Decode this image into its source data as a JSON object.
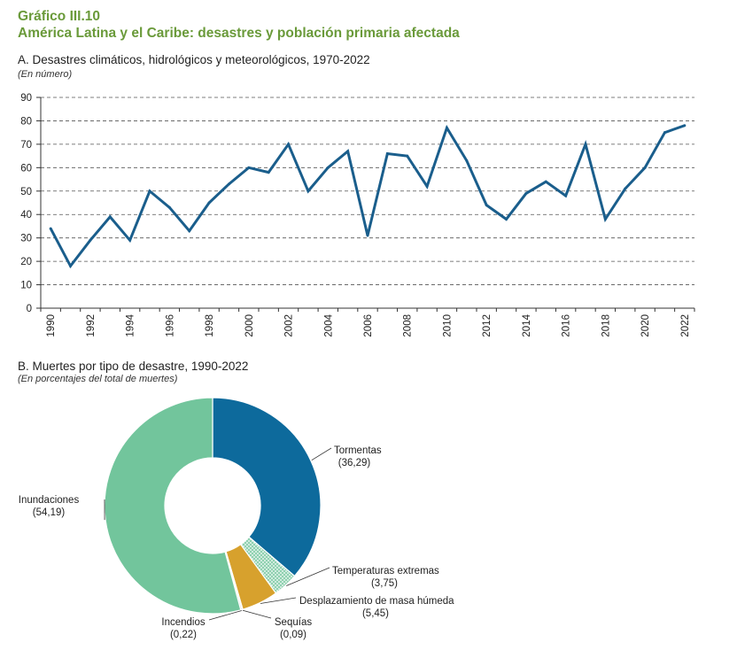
{
  "figure": {
    "number": "Gráfico III.10",
    "title": "América Latina y el Caribe: desastres y población primaria afectada"
  },
  "chart_data": [
    {
      "type": "line",
      "title": "A. Desastres climáticos, hidrológicos y meteorológicos, 1970-2022",
      "subtitle": "(En número)",
      "x": [
        1990,
        1991,
        1992,
        1993,
        1994,
        1995,
        1996,
        1997,
        1998,
        1999,
        2000,
        2001,
        2002,
        2003,
        2004,
        2005,
        2006,
        2007,
        2008,
        2009,
        2010,
        2011,
        2012,
        2013,
        2014,
        2015,
        2016,
        2017,
        2018,
        2019,
        2020,
        2021,
        2022
      ],
      "x_tick_labels": [
        "1990",
        "1992",
        "1994",
        "1996",
        "1998",
        "2000",
        "2002",
        "2004",
        "2006",
        "2008",
        "2010",
        "2012",
        "2014",
        "2016",
        "2018",
        "2020",
        "2022"
      ],
      "series": [
        {
          "values": [
            34,
            18,
            29,
            39,
            29,
            50,
            43,
            33,
            45,
            53,
            60,
            58,
            70,
            50,
            60,
            67,
            31,
            66,
            65,
            52,
            77,
            63,
            44,
            38,
            49,
            54,
            48,
            70,
            38,
            51,
            60,
            75,
            78
          ]
        }
      ],
      "ylim": [
        0,
        90
      ],
      "y_ticks": [
        0,
        10,
        20,
        30,
        40,
        50,
        60,
        70,
        80,
        90
      ],
      "grid": true,
      "color": "#1a5e8c"
    },
    {
      "type": "pie",
      "title": "B. Muertes por tipo de desastre, 1990-2022",
      "subtitle": "(En porcentajes del total de muertes)",
      "donut": true,
      "slices": [
        {
          "label": "Tormentas",
          "value": 36.29,
          "value_label": "(36,29)",
          "color": "#0d6a9c"
        },
        {
          "label": "Temperaturas extremas",
          "value": 3.75,
          "value_label": "(3,75)",
          "color": "#8fd1b0",
          "pattern": "dotted"
        },
        {
          "label": "Desplazamiento de masa húmeda",
          "value": 5.45,
          "value_label": "(5,45)",
          "color": "#d7a12d"
        },
        {
          "label": "Sequías",
          "value": 0.09,
          "value_label": "(0,09)",
          "color": "#999999"
        },
        {
          "label": "Incendios",
          "value": 0.22,
          "value_label": "(0,22)",
          "color": "#cfcfcf"
        },
        {
          "label": "Inundaciones",
          "value": 54.19,
          "value_label": "(54,19)",
          "color": "#72c59c"
        }
      ]
    }
  ]
}
